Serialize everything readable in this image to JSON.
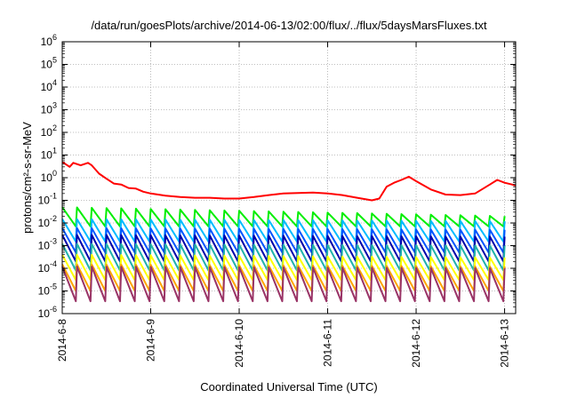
{
  "chart_data": {
    "type": "line",
    "title": "/data/run/goesPlots/archive/2014-06-13/02:00/flux/../flux/5daysMarsFluxes.txt",
    "xlabel": "Coordinated Universal Time (UTC)",
    "ylabel": "protons/cm²-s-sr-MeV",
    "y_scale": "log",
    "ylim": [
      1e-06,
      1000000.0
    ],
    "xlim": [
      "2014-06-08 00:00",
      "2014-06-13 03:00"
    ],
    "grid": true,
    "legend": "none",
    "x_ticks": [
      "2014-6-8",
      "2014-6-9",
      "2014-6-10",
      "2014-6-11",
      "2014-6-12",
      "2014-6-13"
    ],
    "y_ticks": [
      {
        "base": "10",
        "exp": "-6"
      },
      {
        "base": "10",
        "exp": "-5"
      },
      {
        "base": "10",
        "exp": "-4"
      },
      {
        "base": "10",
        "exp": "-3"
      },
      {
        "base": "10",
        "exp": "-2"
      },
      {
        "base": "10",
        "exp": "-1"
      },
      {
        "base": "10",
        "exp": "0"
      },
      {
        "base": "10",
        "exp": "1"
      },
      {
        "base": "10",
        "exp": "2"
      },
      {
        "base": "10",
        "exp": "3"
      },
      {
        "base": "10",
        "exp": "4"
      },
      {
        "base": "10",
        "exp": "5"
      },
      {
        "base": "10",
        "exp": "6"
      }
    ],
    "series": [
      {
        "color": "#ff0000",
        "x": [
          "2014-06-08 00:00",
          "2014-06-08 02:00",
          "2014-06-08 03:00",
          "2014-06-08 05:00",
          "2014-06-08 07:00",
          "2014-06-08 08:00",
          "2014-06-08 10:00",
          "2014-06-08 12:00",
          "2014-06-08 14:00",
          "2014-06-08 16:00",
          "2014-06-08 18:00",
          "2014-06-08 20:00",
          "2014-06-08 22:00",
          "2014-06-09 00:00",
          "2014-06-09 04:00",
          "2014-06-09 08:00",
          "2014-06-09 12:00",
          "2014-06-09 16:00",
          "2014-06-09 20:00",
          "2014-06-10 00:00",
          "2014-06-10 04:00",
          "2014-06-10 08:00",
          "2014-06-10 12:00",
          "2014-06-10 16:00",
          "2014-06-10 20:00",
          "2014-06-11 00:00",
          "2014-06-11 04:00",
          "2014-06-11 08:00",
          "2014-06-11 12:00",
          "2014-06-11 14:00",
          "2014-06-11 16:00",
          "2014-06-11 18:00",
          "2014-06-11 20:00",
          "2014-06-11 22:00",
          "2014-06-12 00:00",
          "2014-06-12 04:00",
          "2014-06-12 08:00",
          "2014-06-12 12:00",
          "2014-06-12 16:00",
          "2014-06-12 20:00",
          "2014-06-12 22:00",
          "2014-06-13 00:00",
          "2014-06-13 02:00",
          "2014-06-13 03:00"
        ],
        "values": [
          5,
          3,
          4.5,
          3.5,
          4.5,
          3.5,
          1.5,
          0.9,
          0.55,
          0.5,
          0.35,
          0.33,
          0.24,
          0.2,
          0.16,
          0.14,
          0.13,
          0.13,
          0.12,
          0.12,
          0.14,
          0.17,
          0.2,
          0.21,
          0.22,
          0.2,
          0.17,
          0.13,
          0.1,
          0.12,
          0.4,
          0.6,
          0.8,
          1.1,
          0.7,
          0.3,
          0.18,
          0.17,
          0.2,
          0.5,
          0.8,
          0.6,
          0.5,
          0.45
        ]
      },
      {
        "color": "#00ee00",
        "period_hours": 4,
        "peak_start": 0.05,
        "peak_end": 0.02,
        "trough": 0.007
      },
      {
        "color": "#00bbff",
        "period_hours": 4,
        "peak_start": 0.015,
        "peak_end": 0.012,
        "trough": 0.0015
      },
      {
        "color": "#0055ff",
        "period_hours": 4,
        "peak_start": 0.006,
        "peak_end": 0.005,
        "trough": 0.0005
      },
      {
        "color": "#0000aa",
        "period_hours": 4,
        "peak_start": 0.003,
        "peak_end": 0.0025,
        "trough": 0.0002
      },
      {
        "color": "#20b2aa",
        "period_hours": 4,
        "peak_start": 0.0012,
        "peak_end": 0.001,
        "trough": 8e-05
      },
      {
        "color": "#ffff00",
        "period_hours": 4,
        "peak_start": 0.0004,
        "peak_end": 0.0003,
        "trough": 3e-05
      },
      {
        "color": "#ffa500",
        "period_hours": 4,
        "peak_start": 0.00015,
        "peak_end": 0.00012,
        "trough": 1e-05
      },
      {
        "color": "#993366",
        "period_hours": 4,
        "peak_start": 0.00012,
        "peak_end": 0.0001,
        "trough": 3.5e-06
      }
    ]
  }
}
